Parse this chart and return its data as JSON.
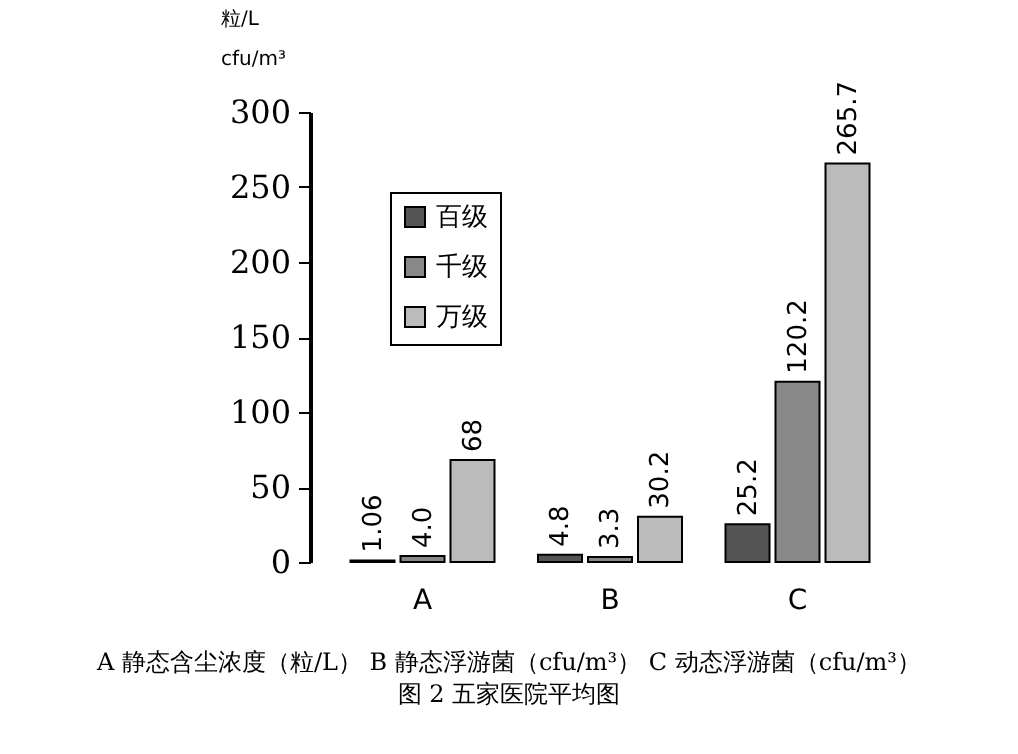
{
  "chart_data": {
    "type": "bar",
    "title": "图 2 五家医院平均图",
    "ylabel": "粒/L\ncfu/m³",
    "annotations": [
      "A 静态含尘浓度（粒/L） B 静态浮游菌（cfu/m³） C 动态浮游菌（cfu/m³）"
    ],
    "categories": [
      "A",
      "B",
      "C"
    ],
    "series": [
      {
        "name": "百级",
        "color": "#555555",
        "values": [
          1.06,
          4.8,
          25.2
        ],
        "value_labels": [
          "1.06",
          "4.8",
          "25.2"
        ]
      },
      {
        "name": "千级",
        "color": "#888888",
        "values": [
          4.0,
          3.3,
          120.2
        ],
        "value_labels": [
          "4.0",
          "3.3",
          "120.2"
        ]
      },
      {
        "name": "万级",
        "color": "#bbbbbb",
        "values": [
          68,
          30.2,
          265.7
        ],
        "value_labels": [
          "68",
          "30.2",
          "265.7"
        ]
      }
    ],
    "ylim": [
      0,
      300
    ],
    "yticks": [
      0,
      50,
      100,
      150,
      200,
      250,
      300
    ],
    "grid": false,
    "legend": "top left"
  }
}
